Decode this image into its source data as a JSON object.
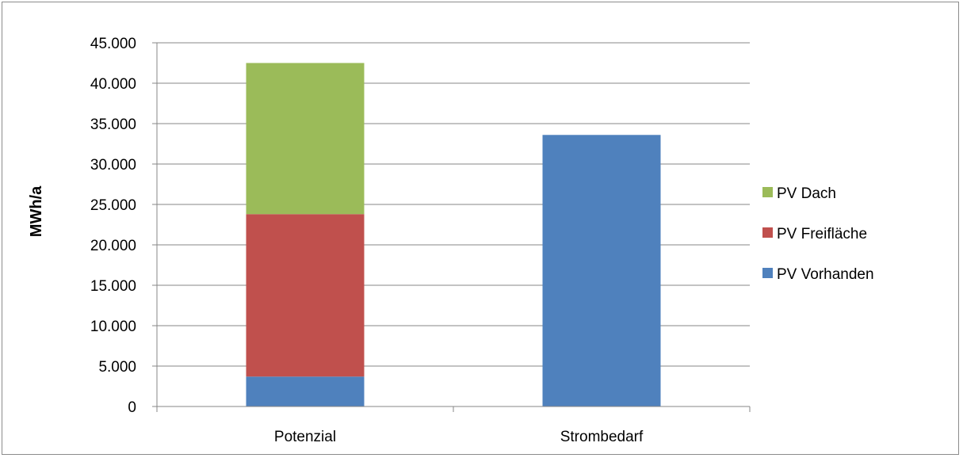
{
  "chart_data": {
    "type": "bar",
    "stacked": true,
    "categories": [
      "Potenzial",
      "Strombedarf"
    ],
    "ylabel": "MWh/a",
    "ylim": [
      0,
      45000
    ],
    "yticks": [
      0,
      5000,
      10000,
      15000,
      20000,
      25000,
      30000,
      35000,
      40000,
      45000
    ],
    "ytick_labels": [
      "0",
      "5.000",
      "10.000",
      "15.000",
      "20.000",
      "25.000",
      "30.000",
      "35.000",
      "40.000",
      "45.000"
    ],
    "grid": true,
    "legend_position": "right",
    "series": [
      {
        "name": "PV Vorhanden",
        "color": "#4f81bd",
        "values": [
          3700,
          33600
        ]
      },
      {
        "name": "PV Freifläche",
        "color": "#c0504d",
        "values": [
          20100,
          0
        ]
      },
      {
        "name": "PV Dach",
        "color": "#9bbb59",
        "values": [
          18700,
          0
        ]
      }
    ]
  }
}
